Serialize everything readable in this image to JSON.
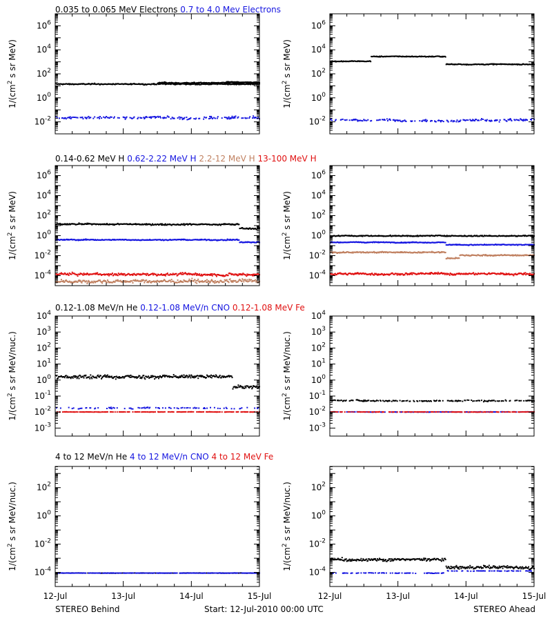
{
  "chart_data": {
    "type": "scatter",
    "x_ticks": [
      "12-Jul",
      "13-Jul",
      "14-Jul",
      "15-Jul"
    ],
    "footer": {
      "left": "STEREO Behind",
      "center": "Start: 12-Jul-2010 00:00 UTC",
      "right": "STEREO Ahead"
    },
    "colors": {
      "black": "#000000",
      "blue": "#1414e0",
      "brown": "#c08060",
      "red": "#e01010"
    },
    "rows": [
      {
        "ylabel": [
          "1/(cm",
          "2",
          " s sr MeV)"
        ],
        "ylim_exp": [
          -3,
          7
        ],
        "tick_exps": [
          -2,
          0,
          2,
          4,
          6
        ],
        "legend": [
          {
            "text": "0.035 to 0.065 MeV Electrons",
            "color": "black"
          },
          {
            "text": "0.7 to 4.0 Mev Electrons",
            "color": "blue"
          }
        ],
        "panels": [
          {
            "name": "behind",
            "series": [
              {
                "color": "black",
                "segments": [
                  [
                    0,
                    3,
                    1.2
                  ],
                  [
                    1.5,
                    3,
                    1.3
                  ],
                  [
                    2.5,
                    3,
                    1.35
                  ]
                ],
                "noise": 0.05
              },
              {
                "color": "blue",
                "segments": [
                  [
                    0,
                    3,
                    -1.6
                  ]
                ],
                "noise": 0.12,
                "sparse": 0.0
              }
            ]
          },
          {
            "name": "ahead",
            "series": [
              {
                "color": "black",
                "segments": [
                  [
                    0,
                    0.6,
                    3.1
                  ],
                  [
                    0.6,
                    1.7,
                    3.5
                  ],
                  [
                    1.7,
                    3,
                    2.85
                  ]
                ],
                "noise": 0.04
              },
              {
                "color": "blue",
                "segments": [
                  [
                    0,
                    3,
                    -1.8
                  ]
                ],
                "noise": 0.12,
                "sparse": 0.0
              }
            ]
          }
        ]
      },
      {
        "ylabel": [
          "1/(cm",
          "2",
          " s sr MeV)"
        ],
        "ylim_exp": [
          -5,
          7
        ],
        "tick_exps": [
          -4,
          -2,
          0,
          2,
          4,
          6
        ],
        "legend": [
          {
            "text": "0.14-0.62 MeV H",
            "color": "black"
          },
          {
            "text": "0.62-2.22 MeV H",
            "color": "blue"
          },
          {
            "text": "2.2-12 MeV H",
            "color": "brown"
          },
          {
            "text": "13-100 MeV H",
            "color": "red"
          }
        ],
        "panels": [
          {
            "name": "behind",
            "series": [
              {
                "color": "black",
                "segments": [
                  [
                    0,
                    2.7,
                    1.2
                  ],
                  [
                    2.7,
                    3,
                    0.8
                  ]
                ],
                "noise": 0.08
              },
              {
                "color": "blue",
                "segments": [
                  [
                    0,
                    2.7,
                    -0.35
                  ],
                  [
                    2.7,
                    3,
                    -0.6
                  ]
                ],
                "noise": 0.06
              },
              {
                "color": "brown",
                "segments": [
                  [
                    0,
                    3,
                    -4.5
                  ]
                ],
                "noise": 0.2
              },
              {
                "color": "red",
                "segments": [
                  [
                    0,
                    3,
                    -3.8
                  ]
                ],
                "noise": 0.15
              }
            ]
          },
          {
            "name": "ahead",
            "series": [
              {
                "color": "black",
                "segments": [
                  [
                    0,
                    3,
                    0.05
                  ]
                ],
                "noise": 0.06
              },
              {
                "color": "blue",
                "segments": [
                  [
                    0,
                    1.7,
                    -0.6
                  ],
                  [
                    1.7,
                    3,
                    -0.85
                  ]
                ],
                "noise": 0.05
              },
              {
                "color": "brown",
                "segments": [
                  [
                    0,
                    1.7,
                    -1.6
                  ],
                  [
                    1.7,
                    1.9,
                    -2.2
                  ],
                  [
                    1.9,
                    3,
                    -1.9
                  ]
                ],
                "noise": 0.07
              },
              {
                "color": "red",
                "segments": [
                  [
                    0,
                    3,
                    -3.75
                  ]
                ],
                "noise": 0.12
              }
            ]
          }
        ]
      },
      {
        "ylabel": [
          "1/(cm",
          "2",
          " s sr MeV/nuc.)"
        ],
        "ylim_exp": [
          -3.5,
          4
        ],
        "tick_exps": [
          -3,
          -2,
          -1,
          0,
          1,
          2,
          3,
          4
        ],
        "legend": [
          {
            "text": "0.12-1.08 MeV/n He",
            "color": "black"
          },
          {
            "text": "0.12-1.08 MeV/n CNO",
            "color": "blue"
          },
          {
            "text": "0.12-1.08 MeV Fe",
            "color": "red"
          }
        ],
        "panels": [
          {
            "name": "behind",
            "series": [
              {
                "color": "black",
                "segments": [
                  [
                    0,
                    2.6,
                    0.25
                  ],
                  [
                    2.6,
                    3,
                    -0.4
                  ]
                ],
                "noise": 0.12
              },
              {
                "color": "blue",
                "segments": [
                  [
                    0,
                    3,
                    -1.7
                  ]
                ],
                "noise": 0.05,
                "sparse": 0.3
              },
              {
                "color": "red",
                "segments": [
                  [
                    0,
                    3,
                    -1.95
                  ]
                ],
                "noise": 0.01,
                "sparse": 0.0
              }
            ]
          },
          {
            "name": "ahead",
            "series": [
              {
                "color": "black",
                "segments": [
                  [
                    0,
                    3,
                    -1.25
                  ]
                ],
                "noise": 0.05,
                "sparse": 0.0
              },
              {
                "color": "blue",
                "segments": [
                  [
                    0,
                    3,
                    -1.95
                  ]
                ],
                "noise": 0.01,
                "sparse": 0.0
              },
              {
                "color": "red",
                "segments": [
                  [
                    0,
                    3,
                    -1.95
                  ]
                ],
                "noise": 0.01,
                "sparse": 0.0
              }
            ]
          }
        ]
      },
      {
        "ylabel": [
          "1/(cm",
          "2",
          " s sr MeV/nuc.)"
        ],
        "ylim_exp": [
          -5,
          3.5
        ],
        "tick_exps": [
          -4,
          -2,
          0,
          2
        ],
        "legend": [
          {
            "text": "4 to 12 MeV/n He",
            "color": "black"
          },
          {
            "text": "4 to 12 MeV/n CNO",
            "color": "blue"
          },
          {
            "text": "4 to 12 MeV Fe",
            "color": "red"
          }
        ],
        "panels": [
          {
            "name": "behind",
            "series": [
              {
                "color": "black",
                "segments": [
                  [
                    0,
                    3,
                    -4.0
                  ]
                ],
                "noise": 0.01,
                "sparse": 0.6
              },
              {
                "color": "blue",
                "segments": [
                  [
                    0,
                    3,
                    -4.0
                  ]
                ],
                "noise": 0.01,
                "sparse": 0.8
              }
            ]
          },
          {
            "name": "ahead",
            "series": [
              {
                "color": "black",
                "segments": [
                  [
                    0,
                    1.7,
                    -3.05
                  ],
                  [
                    1.7,
                    3,
                    -3.6
                  ]
                ],
                "noise": 0.12
              },
              {
                "color": "blue",
                "segments": [
                  [
                    0,
                    1.7,
                    -4.0
                  ],
                  [
                    1.7,
                    3,
                    -3.85
                  ]
                ],
                "noise": 0.02,
                "sparse": 0.4
              }
            ]
          }
        ]
      }
    ]
  }
}
